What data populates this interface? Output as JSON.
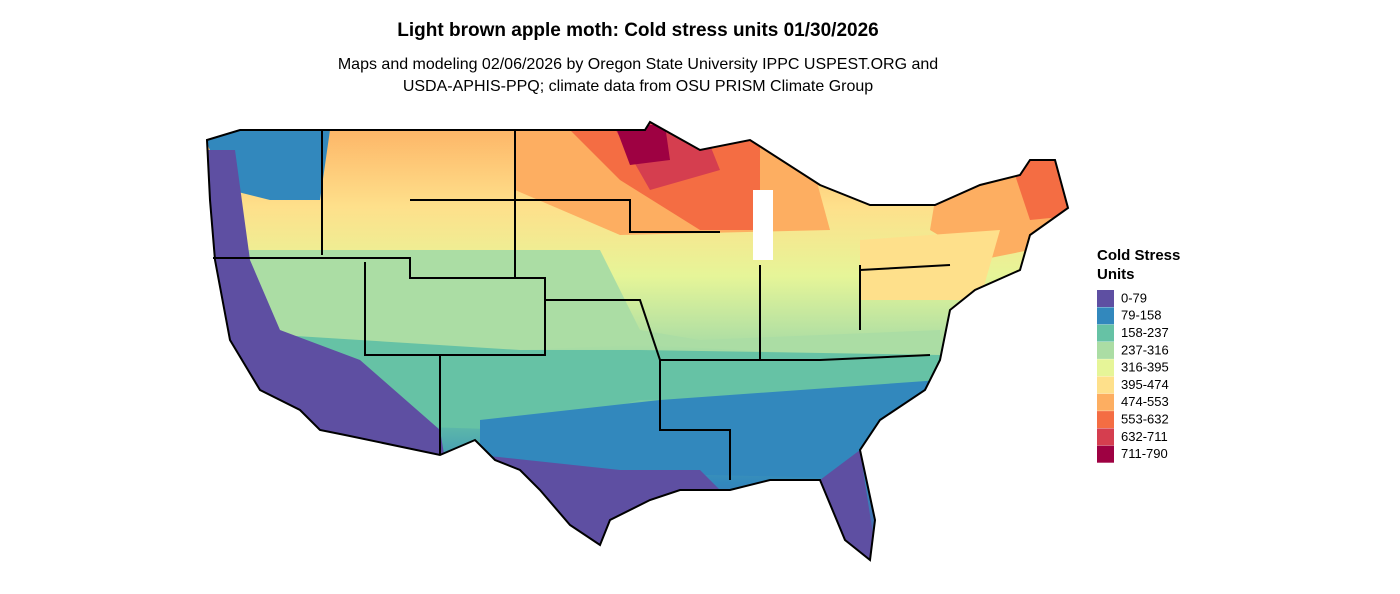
{
  "header": {
    "title": "Light brown apple moth: Cold stress units 01/30/2026",
    "subtitle": [
      "Maps and modeling 02/06/2026 by Oregon State University IPPC USPEST.ORG and",
      "USDA-APHIS-PPQ; climate data from OSU PRISM Climate Group"
    ]
  },
  "legend": {
    "title": [
      "Cold Stress",
      "Units"
    ],
    "items": [
      {
        "label": "0-79",
        "color": "#5e4fa2"
      },
      {
        "label": "79-158",
        "color": "#3288bd"
      },
      {
        "label": "158-237",
        "color": "#66c2a5"
      },
      {
        "label": "237-316",
        "color": "#abdda4"
      },
      {
        "label": "316-395",
        "color": "#e6f598"
      },
      {
        "label": "395-474",
        "color": "#fee08b"
      },
      {
        "label": "474-553",
        "color": "#fdae61"
      },
      {
        "label": "553-632",
        "color": "#f46d43"
      },
      {
        "label": "632-711",
        "color": "#d53e4f"
      },
      {
        "label": "711-790",
        "color": "#9e0142"
      }
    ]
  }
}
